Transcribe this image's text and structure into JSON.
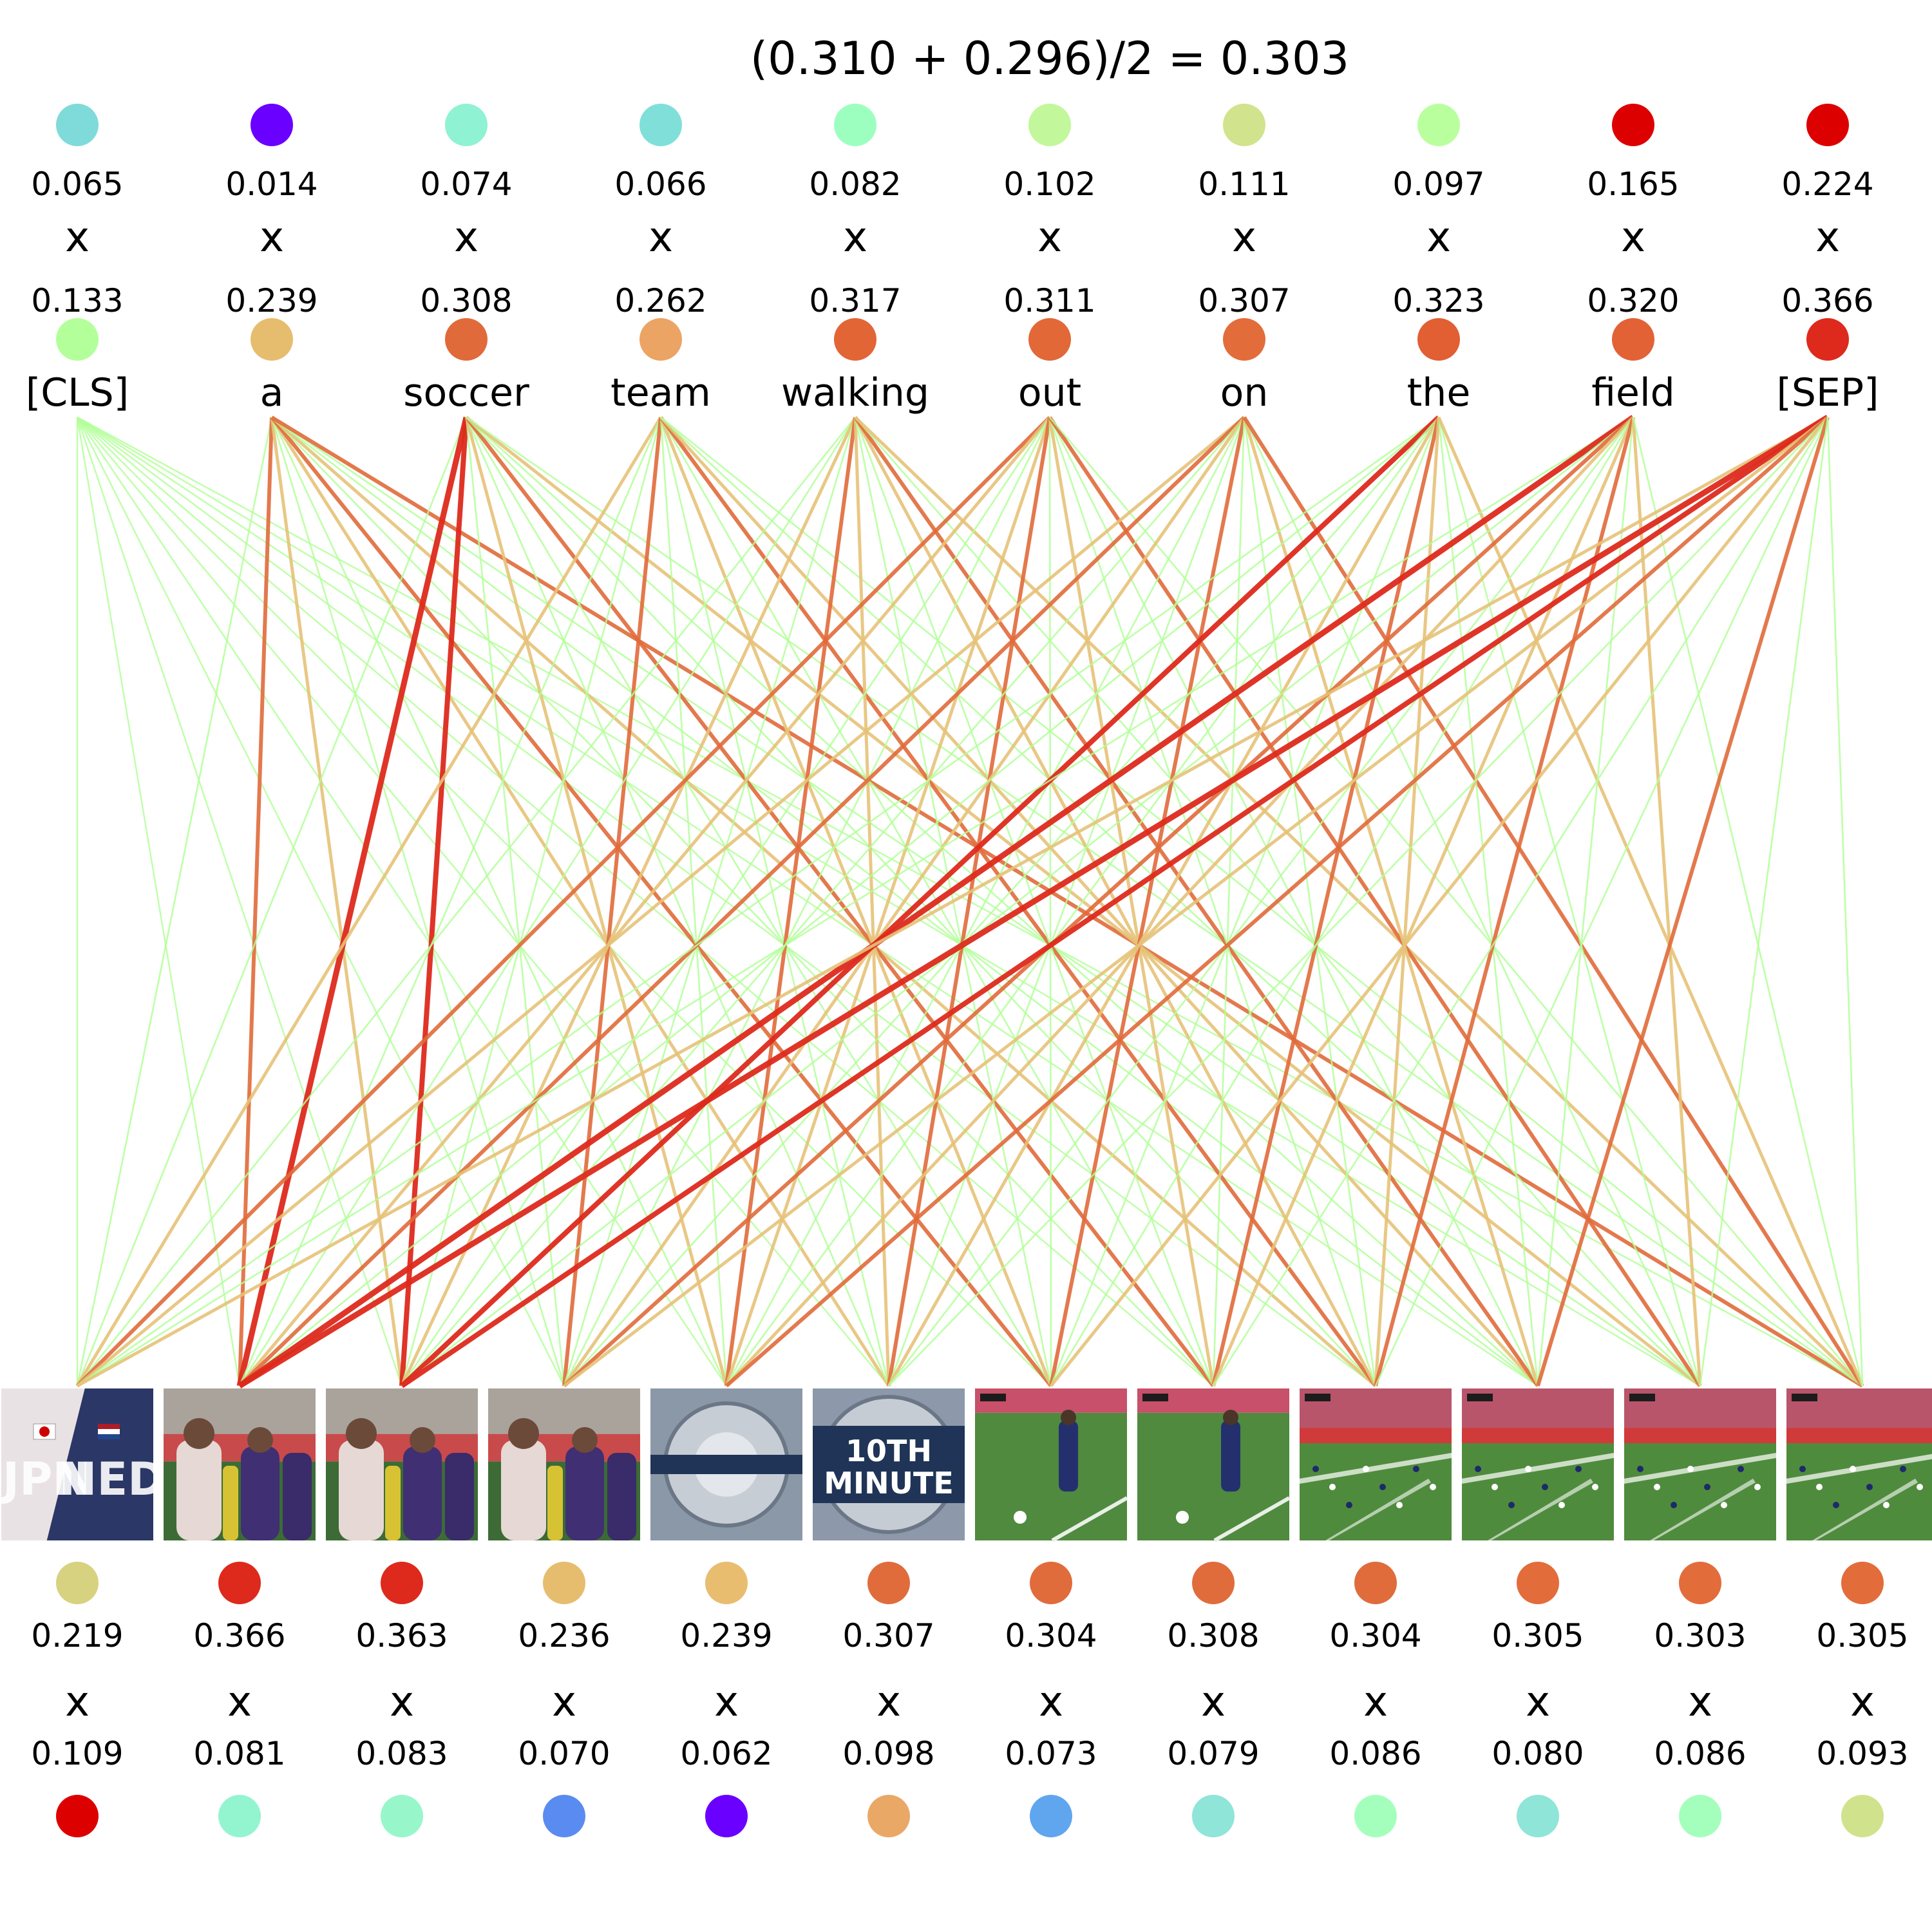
{
  "title": "(0.310 + 0.296)/2 = 0.303",
  "multiply_symbol": "x",
  "tokens": [
    {
      "word": "[CLS]",
      "top_value": "0.065",
      "bottom_value": "0.133",
      "top_color": "#7fdbd9",
      "bottom_color": "#b3ff99"
    },
    {
      "word": "a",
      "top_value": "0.014",
      "bottom_value": "0.239",
      "top_color": "#6a00ff",
      "bottom_color": "#e6bd6e"
    },
    {
      "word": "soccer",
      "top_value": "0.074",
      "bottom_value": "0.308",
      "top_color": "#8ff2d2",
      "bottom_color": "#e06a3a"
    },
    {
      "word": "team",
      "top_value": "0.066",
      "bottom_value": "0.262",
      "top_color": "#80dfd9",
      "bottom_color": "#eba464"
    },
    {
      "word": "walking",
      "top_value": "0.082",
      "bottom_value": "0.317",
      "top_color": "#9cffc0",
      "bottom_color": "#e26536"
    },
    {
      "word": "out",
      "top_value": "0.102",
      "bottom_value": "0.311",
      "top_color": "#c2f79b",
      "bottom_color": "#e26838"
    },
    {
      "word": "on",
      "top_value": "0.111",
      "bottom_value": "0.307",
      "top_color": "#d1e38c",
      "bottom_color": "#e36c3b"
    },
    {
      "word": "the",
      "top_value": "0.097",
      "bottom_value": "0.323",
      "top_color": "#baff9e",
      "bottom_color": "#e25e33"
    },
    {
      "word": "field",
      "top_value": "0.165",
      "bottom_value": "0.320",
      "top_color": "#dd0000",
      "bottom_color": "#e26236"
    },
    {
      "word": "[SEP]",
      "top_value": "0.224",
      "bottom_value": "0.366",
      "top_color": "#dd0000",
      "bottom_color": "#dd2a1c"
    }
  ],
  "frames": [
    {
      "scene": "jpn-ned-title",
      "overlay_text": "JPN NED",
      "top_value": "0.219",
      "bottom_value": "0.109",
      "top_color": "#d7d27f",
      "bottom_color": "#dd0000"
    },
    {
      "scene": "players-walking",
      "overlay_text": "",
      "top_value": "0.366",
      "bottom_value": "0.081",
      "top_color": "#dd2a1c",
      "bottom_color": "#93f5cf"
    },
    {
      "scene": "players-walking",
      "overlay_text": "",
      "top_value": "0.363",
      "bottom_value": "0.083",
      "top_color": "#dd2a1c",
      "bottom_color": "#97f7cb"
    },
    {
      "scene": "players-walking",
      "overlay_text": "",
      "top_value": "0.236",
      "bottom_value": "0.070",
      "top_color": "#e6bd6e",
      "bottom_color": "#5a8bf0"
    },
    {
      "scene": "broadcast-logo",
      "overlay_text": "",
      "top_value": "0.239",
      "bottom_value": "0.062",
      "top_color": "#e8bd70",
      "bottom_color": "#6a00ff"
    },
    {
      "scene": "10th-minute",
      "overlay_text": "10TH MINUTE",
      "top_value": "0.307",
      "bottom_value": "0.098",
      "top_color": "#e06c3c",
      "bottom_color": "#eaa866"
    },
    {
      "scene": "player-closeup",
      "overlay_text": "",
      "top_value": "0.304",
      "bottom_value": "0.073",
      "top_color": "#e06c3c",
      "bottom_color": "#5fa6ee"
    },
    {
      "scene": "player-closeup",
      "overlay_text": "",
      "top_value": "0.308",
      "bottom_value": "0.079",
      "top_color": "#e06c3c",
      "bottom_color": "#8ee5d8"
    },
    {
      "scene": "wide-field",
      "overlay_text": "",
      "top_value": "0.304",
      "bottom_value": "0.086",
      "top_color": "#e06c3c",
      "bottom_color": "#a4ffbc"
    },
    {
      "scene": "wide-field",
      "overlay_text": "",
      "top_value": "0.305",
      "bottom_value": "0.080",
      "top_color": "#e36c3b",
      "bottom_color": "#8ee5d8"
    },
    {
      "scene": "wide-field",
      "overlay_text": "",
      "top_value": "0.303",
      "bottom_value": "0.086",
      "top_color": "#e36c3b",
      "bottom_color": "#a4ffbc"
    },
    {
      "scene": "wide-field",
      "overlay_text": "",
      "top_value": "0.305",
      "bottom_value": "0.093",
      "top_color": "#e36c3b",
      "bottom_color": "#d0e38c"
    }
  ],
  "connection_colors": {
    "weak": "#b3ff99",
    "medium": "#e6c278",
    "strong": "#e06a3a",
    "strongest": "#dd2a1c"
  }
}
